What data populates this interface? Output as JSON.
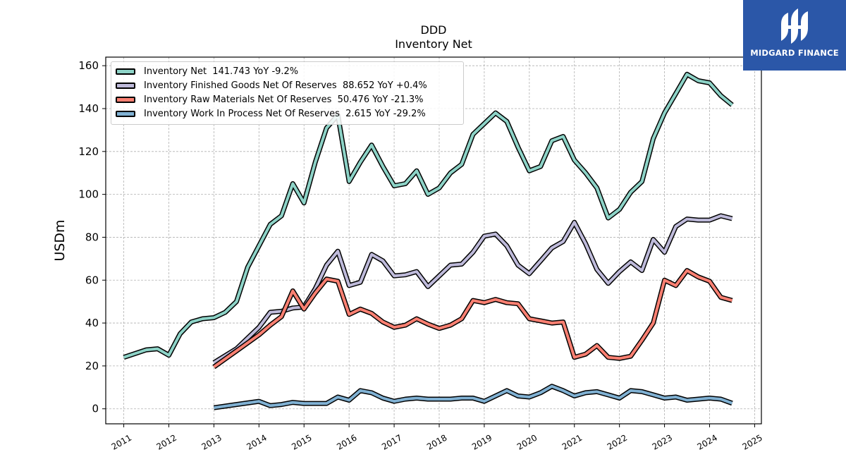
{
  "brand": {
    "name": "MIDGARD FINANCE",
    "color": "#2b57a8"
  },
  "chart_data": {
    "type": "line",
    "title": "DDD",
    "subtitle": "Inventory Net",
    "ylabel": "USDm",
    "xlabel": "",
    "ylim": [
      -7,
      164
    ],
    "xlim": [
      2010.6,
      2025.15
    ],
    "yticks": [
      "0",
      "20",
      "40",
      "60",
      "80",
      "100",
      "120",
      "140",
      "160"
    ],
    "xticks": [
      "2011",
      "2012",
      "2013",
      "2014",
      "2015",
      "2016",
      "2017",
      "2018",
      "2019",
      "2020",
      "2021",
      "2022",
      "2023",
      "2024",
      "2025"
    ],
    "grid": true,
    "legend_position": "upper-left",
    "series": [
      {
        "name": "Inventory Net  141.743 YoY -9.2%",
        "color": "#8dd3c7",
        "points": [
          [
            2011.0,
            24.0
          ],
          [
            2011.5,
            27.5
          ],
          [
            2011.75,
            28.0
          ],
          [
            2012.0,
            25.0
          ],
          [
            2012.25,
            35.0
          ],
          [
            2012.5,
            40.5
          ],
          [
            2012.75,
            42.0
          ],
          [
            2013.0,
            42.5
          ],
          [
            2013.25,
            45.0
          ],
          [
            2013.5,
            50.0
          ],
          [
            2013.75,
            66.0
          ],
          [
            2014.0,
            76.0
          ],
          [
            2014.25,
            86.0
          ],
          [
            2014.5,
            90.0
          ],
          [
            2014.75,
            105.0
          ],
          [
            2015.0,
            96.0
          ],
          [
            2015.25,
            115.0
          ],
          [
            2015.5,
            131.0
          ],
          [
            2015.75,
            137.0
          ],
          [
            2016.0,
            106.0
          ],
          [
            2016.25,
            115.0
          ],
          [
            2016.5,
            123.0
          ],
          [
            2016.75,
            113.0
          ],
          [
            2017.0,
            104.0
          ],
          [
            2017.25,
            105.0
          ],
          [
            2017.5,
            111.0
          ],
          [
            2017.75,
            100.0
          ],
          [
            2018.0,
            103.0
          ],
          [
            2018.25,
            110.0
          ],
          [
            2018.5,
            114.0
          ],
          [
            2018.75,
            128.0
          ],
          [
            2019.0,
            133.0
          ],
          [
            2019.25,
            138.0
          ],
          [
            2019.5,
            134.0
          ],
          [
            2019.75,
            122.0
          ],
          [
            2020.0,
            111.0
          ],
          [
            2020.25,
            113.0
          ],
          [
            2020.5,
            125.0
          ],
          [
            2020.75,
            127.0
          ],
          [
            2021.0,
            116.0
          ],
          [
            2021.25,
            110.0
          ],
          [
            2021.5,
            103.0
          ],
          [
            2021.75,
            89.0
          ],
          [
            2022.0,
            93.0
          ],
          [
            2022.25,
            101.0
          ],
          [
            2022.5,
            106.0
          ],
          [
            2022.75,
            126.0
          ],
          [
            2023.0,
            138.0
          ],
          [
            2023.25,
            147.0
          ],
          [
            2023.5,
            156.0
          ],
          [
            2023.75,
            153.0
          ],
          [
            2024.0,
            152.0
          ],
          [
            2024.25,
            146.0
          ],
          [
            2024.5,
            141.7
          ]
        ]
      },
      {
        "name": "Inventory Finished Goods Net Of Reserves  88.652 YoY +0.4%",
        "color": "#bebada",
        "points": [
          [
            2013.0,
            21.5
          ],
          [
            2013.5,
            28.0
          ],
          [
            2014.0,
            38.0
          ],
          [
            2014.25,
            45.0
          ],
          [
            2014.5,
            45.5
          ],
          [
            2014.75,
            47.0
          ],
          [
            2015.0,
            47.5
          ],
          [
            2015.25,
            56.0
          ],
          [
            2015.5,
            67.0
          ],
          [
            2015.75,
            73.5
          ],
          [
            2016.0,
            57.5
          ],
          [
            2016.25,
            59.0
          ],
          [
            2016.5,
            72.0
          ],
          [
            2016.75,
            69.0
          ],
          [
            2017.0,
            62.0
          ],
          [
            2017.25,
            62.5
          ],
          [
            2017.5,
            64.0
          ],
          [
            2017.75,
            57.0
          ],
          [
            2018.0,
            62.0
          ],
          [
            2018.25,
            67.0
          ],
          [
            2018.5,
            67.5
          ],
          [
            2018.75,
            73.0
          ],
          [
            2019.0,
            80.5
          ],
          [
            2019.25,
            81.5
          ],
          [
            2019.5,
            76.0
          ],
          [
            2019.75,
            67.0
          ],
          [
            2020.0,
            63.0
          ],
          [
            2020.25,
            69.0
          ],
          [
            2020.5,
            75.0
          ],
          [
            2020.75,
            78.0
          ],
          [
            2021.0,
            87.0
          ],
          [
            2021.25,
            77.0
          ],
          [
            2021.5,
            65.0
          ],
          [
            2021.75,
            58.5
          ],
          [
            2022.0,
            64.0
          ],
          [
            2022.25,
            68.5
          ],
          [
            2022.5,
            64.5
          ],
          [
            2022.75,
            79.0
          ],
          [
            2023.0,
            73.0
          ],
          [
            2023.25,
            85.0
          ],
          [
            2023.5,
            88.5
          ],
          [
            2023.75,
            88.0
          ],
          [
            2024.0,
            88.0
          ],
          [
            2024.25,
            90.0
          ],
          [
            2024.5,
            88.7
          ]
        ]
      },
      {
        "name": "Inventory Raw Materials Net Of Reserves  50.476 YoY -21.3%",
        "color": "#fb8072",
        "points": [
          [
            2013.0,
            19.5
          ],
          [
            2013.5,
            27.0
          ],
          [
            2014.0,
            34.5
          ],
          [
            2014.25,
            39.0
          ],
          [
            2014.5,
            43.0
          ],
          [
            2014.75,
            55.0
          ],
          [
            2015.0,
            46.5
          ],
          [
            2015.25,
            54.0
          ],
          [
            2015.5,
            60.5
          ],
          [
            2015.75,
            59.5
          ],
          [
            2016.0,
            44.0
          ],
          [
            2016.25,
            46.5
          ],
          [
            2016.5,
            44.5
          ],
          [
            2016.75,
            40.5
          ],
          [
            2017.0,
            38.0
          ],
          [
            2017.25,
            39.0
          ],
          [
            2017.5,
            42.0
          ],
          [
            2017.75,
            39.5
          ],
          [
            2018.0,
            37.5
          ],
          [
            2018.25,
            39.0
          ],
          [
            2018.5,
            42.0
          ],
          [
            2018.75,
            50.5
          ],
          [
            2019.0,
            49.5
          ],
          [
            2019.25,
            51.0
          ],
          [
            2019.5,
            49.5
          ],
          [
            2019.75,
            49.0
          ],
          [
            2020.0,
            42.0
          ],
          [
            2020.25,
            41.0
          ],
          [
            2020.5,
            40.0
          ],
          [
            2020.75,
            40.5
          ],
          [
            2021.0,
            24.0
          ],
          [
            2021.25,
            25.5
          ],
          [
            2021.5,
            29.5
          ],
          [
            2021.75,
            24.0
          ],
          [
            2022.0,
            23.5
          ],
          [
            2022.25,
            24.5
          ],
          [
            2022.5,
            32.0
          ],
          [
            2022.75,
            40.0
          ],
          [
            2023.0,
            60.0
          ],
          [
            2023.25,
            57.5
          ],
          [
            2023.5,
            64.5
          ],
          [
            2023.75,
            61.5
          ],
          [
            2024.0,
            59.5
          ],
          [
            2024.25,
            52.0
          ],
          [
            2024.5,
            50.5
          ]
        ]
      },
      {
        "name": "Inventory Work In Process Net Of Reserves  2.615 YoY -29.2%",
        "color": "#80b1d3",
        "points": [
          [
            2013.0,
            0.5
          ],
          [
            2013.5,
            2.0
          ],
          [
            2014.0,
            3.5
          ],
          [
            2014.25,
            1.5
          ],
          [
            2014.5,
            2.0
          ],
          [
            2014.75,
            3.0
          ],
          [
            2015.0,
            2.5
          ],
          [
            2015.25,
            2.5
          ],
          [
            2015.5,
            2.5
          ],
          [
            2015.75,
            5.5
          ],
          [
            2016.0,
            4.0
          ],
          [
            2016.25,
            8.5
          ],
          [
            2016.5,
            7.5
          ],
          [
            2016.75,
            5.0
          ],
          [
            2017.0,
            3.5
          ],
          [
            2017.25,
            4.5
          ],
          [
            2017.5,
            5.0
          ],
          [
            2017.75,
            4.5
          ],
          [
            2018.0,
            4.5
          ],
          [
            2018.25,
            4.5
          ],
          [
            2018.5,
            5.0
          ],
          [
            2018.75,
            5.0
          ],
          [
            2019.0,
            3.5
          ],
          [
            2019.25,
            6.0
          ],
          [
            2019.5,
            8.5
          ],
          [
            2019.75,
            6.0
          ],
          [
            2020.0,
            5.5
          ],
          [
            2020.25,
            7.5
          ],
          [
            2020.5,
            10.5
          ],
          [
            2020.75,
            8.5
          ],
          [
            2021.0,
            6.0
          ],
          [
            2021.25,
            7.5
          ],
          [
            2021.5,
            8.0
          ],
          [
            2021.75,
            6.5
          ],
          [
            2022.0,
            5.0
          ],
          [
            2022.25,
            8.5
          ],
          [
            2022.5,
            8.0
          ],
          [
            2022.75,
            6.5
          ],
          [
            2023.0,
            5.0
          ],
          [
            2023.25,
            5.5
          ],
          [
            2023.5,
            4.0
          ],
          [
            2023.75,
            4.5
          ],
          [
            2024.0,
            5.0
          ],
          [
            2024.25,
            4.5
          ],
          [
            2024.5,
            2.6
          ]
        ]
      }
    ]
  }
}
